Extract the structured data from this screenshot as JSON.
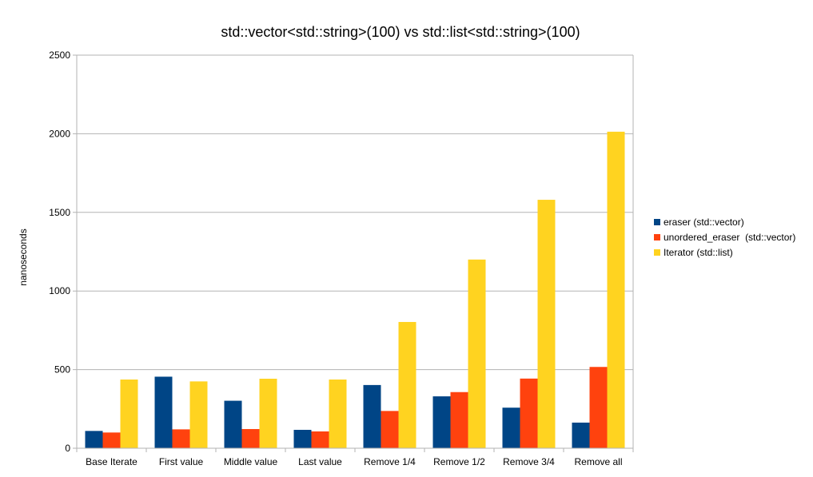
{
  "chart_data": {
    "type": "bar",
    "title": "std::vector<std::string>(100) vs std::list<std::string>(100)",
    "xlabel": "",
    "ylabel": "nanoseconds",
    "ylim": [
      0,
      2500
    ],
    "yticks": [
      0,
      500,
      1000,
      1500,
      2000,
      2500
    ],
    "grid": true,
    "legend_position": "right",
    "categories": [
      "Base Iterate",
      "First value",
      "Middle value",
      "Last value",
      "Remove 1/4",
      "Remove 1/2",
      "Remove 3/4",
      "Remove all"
    ],
    "series": [
      {
        "name": "eraser (std::vector)",
        "color": "#004586",
        "values": [
          110,
          455,
          302,
          117,
          402,
          330,
          258,
          163
        ]
      },
      {
        "name": "unordered_eraser  (std::vector)",
        "color": "#ff420e",
        "values": [
          100,
          120,
          122,
          107,
          237,
          357,
          443,
          517
        ]
      },
      {
        "name": "Iterator (std::list)",
        "color": "#ffd320",
        "values": [
          437,
          425,
          442,
          437,
          803,
          1200,
          1580,
          2013
        ]
      }
    ]
  }
}
